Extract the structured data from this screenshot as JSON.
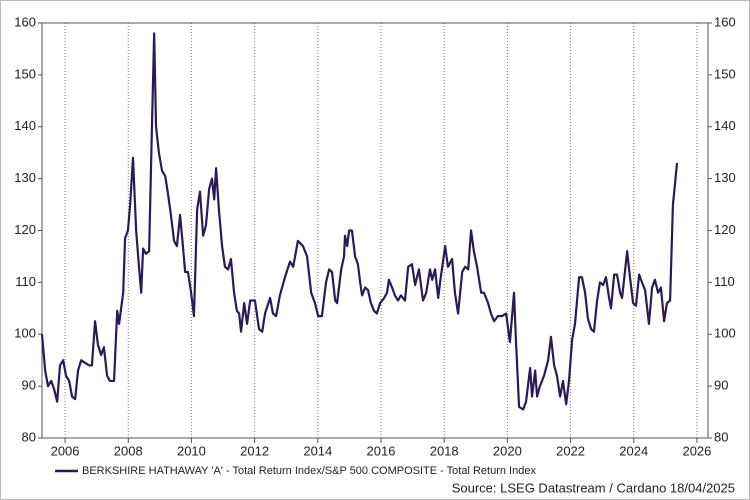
{
  "chart_data": {
    "type": "line",
    "x": [
      2005.27,
      2005.37,
      2005.46,
      2005.56,
      2005.65,
      2005.75,
      2005.84,
      2005.94,
      2006.03,
      2006.13,
      2006.22,
      2006.32,
      2006.41,
      2006.51,
      2006.63,
      2006.76,
      2006.85,
      2006.95,
      2007.04,
      2007.14,
      2007.23,
      2007.33,
      2007.42,
      2007.55,
      2007.65,
      2007.71,
      2007.84,
      2007.9,
      2007.99,
      2008.06,
      2008.15,
      2008.25,
      2008.34,
      2008.41,
      2008.47,
      2008.56,
      2008.66,
      2008.75,
      2008.82,
      2008.88,
      2008.97,
      2009.07,
      2009.17,
      2009.26,
      2009.35,
      2009.45,
      2009.54,
      2009.64,
      2009.73,
      2009.8,
      2009.89,
      2009.99,
      2010.08,
      2010.18,
      2010.27,
      2010.37,
      2010.46,
      2010.56,
      2010.65,
      2010.72,
      2010.78,
      2010.87,
      2010.97,
      2011.06,
      2011.16,
      2011.25,
      2011.35,
      2011.44,
      2011.51,
      2011.57,
      2011.67,
      2011.76,
      2011.86,
      2012.01,
      2012.14,
      2012.24,
      2012.33,
      2012.49,
      2012.58,
      2012.68,
      2012.8,
      2012.96,
      2013.12,
      2013.22,
      2013.37,
      2013.53,
      2013.66,
      2013.79,
      2013.91,
      2014.01,
      2014.13,
      2014.26,
      2014.36,
      2014.45,
      2014.55,
      2014.61,
      2014.74,
      2014.83,
      2014.86,
      2014.93,
      2014.99,
      2015.08,
      2015.18,
      2015.27,
      2015.34,
      2015.4,
      2015.5,
      2015.59,
      2015.68,
      2015.78,
      2015.87,
      2015.97,
      2016.1,
      2016.19,
      2016.25,
      2016.35,
      2016.44,
      2016.54,
      2016.63,
      2016.76,
      2016.86,
      2016.98,
      2017.08,
      2017.2,
      2017.33,
      2017.43,
      2017.55,
      2017.62,
      2017.71,
      2017.81,
      2017.87,
      2018.03,
      2018.12,
      2018.25,
      2018.34,
      2018.44,
      2018.57,
      2018.66,
      2018.76,
      2018.85,
      2018.94,
      2019.04,
      2019.17,
      2019.26,
      2019.39,
      2019.48,
      2019.58,
      2019.7,
      2019.83,
      2019.96,
      2020.08,
      2020.21,
      2020.27,
      2020.37,
      2020.5,
      2020.59,
      2020.72,
      2020.78,
      2020.88,
      2020.94,
      2021.03,
      2021.16,
      2021.29,
      2021.38,
      2021.48,
      2021.57,
      2021.67,
      2021.76,
      2021.86,
      2021.95,
      2022.05,
      2022.14,
      2022.27,
      2022.36,
      2022.46,
      2022.55,
      2022.65,
      2022.74,
      2022.84,
      2022.93,
      2023.03,
      2023.12,
      2023.22,
      2023.28,
      2023.38,
      2023.47,
      2023.57,
      2023.63,
      2023.72,
      2023.79,
      2023.88,
      2023.98,
      2024.07,
      2024.17,
      2024.26,
      2024.36,
      2024.48,
      2024.58,
      2024.67,
      2024.77,
      2024.86,
      2024.96,
      2025.05,
      2025.15,
      2025.24,
      2025.37
    ],
    "series": [
      {
        "name": "BERKSHIRE HATHAWAY 'A' - Total Return Index/S&P 500 COMPOSITE - Total Return Index",
        "color": "#2b1a57",
        "values": [
          100,
          93,
          90,
          91,
          89.5,
          87,
          94,
          95,
          92,
          91,
          88,
          87.5,
          93,
          95,
          94.5,
          94,
          94,
          102.5,
          98,
          96,
          97.5,
          92,
          91,
          91,
          104.5,
          102,
          108,
          118.5,
          120,
          125,
          134,
          120,
          113,
          108,
          116.5,
          115.5,
          116,
          140,
          158,
          140,
          135,
          131.5,
          130.5,
          127,
          123,
          118,
          117,
          123,
          117,
          112,
          112,
          108,
          103.5,
          124,
          127.5,
          119,
          121,
          128,
          130,
          126,
          132,
          124,
          117,
          113,
          112.5,
          114.5,
          108,
          104.5,
          104,
          100.5,
          106,
          102,
          106.5,
          106.5,
          101,
          100.5,
          104,
          107,
          104,
          103.5,
          107.5,
          111,
          114,
          113,
          118,
          117,
          115,
          108,
          106,
          103.5,
          103.5,
          110,
          112.5,
          112,
          106.5,
          106,
          112.5,
          115,
          119,
          117,
          120,
          120,
          115,
          113.5,
          110,
          107.5,
          109,
          108.5,
          106,
          104.5,
          104,
          106,
          107,
          108,
          110.5,
          109,
          107.5,
          106.5,
          107.5,
          106.5,
          113,
          113.5,
          109.5,
          112.5,
          106.5,
          108,
          112.5,
          110.5,
          112.5,
          107,
          110,
          117,
          113,
          114.5,
          108,
          104,
          112,
          113,
          112.5,
          120,
          116,
          113,
          108,
          108,
          106,
          104,
          102.5,
          103.5,
          103.5,
          104,
          98.5,
          108,
          99,
          86,
          85.5,
          87,
          93.5,
          88,
          93,
          88,
          90,
          92,
          95,
          99.5,
          94,
          92,
          88,
          91,
          86.5,
          91,
          99,
          102,
          111,
          111,
          108,
          103,
          101,
          100.5,
          106.5,
          110,
          109.5,
          111,
          107,
          105,
          111.5,
          111.5,
          108,
          107,
          112,
          116,
          111,
          106,
          105.5,
          111.5,
          110,
          108.5,
          102,
          109,
          110.5,
          108,
          109,
          102.5,
          106,
          106.5,
          125,
          133
        ]
      }
    ],
    "xlim": [
      2005.27,
      2026.35
    ],
    "xticks": [
      2006,
      2008,
      2010,
      2012,
      2014,
      2016,
      2018,
      2020,
      2022,
      2024,
      2026
    ],
    "ylim": [
      80,
      160
    ],
    "yticks": [
      80,
      90,
      100,
      110,
      120,
      130,
      140,
      150,
      160
    ],
    "y2lim": [
      80,
      160
    ],
    "y2ticks": [
      80,
      90,
      100,
      110,
      120,
      130,
      140,
      150,
      160
    ],
    "grid": "x",
    "source": "Source: LSEG Datastream / Cardano  18/04/2025"
  }
}
